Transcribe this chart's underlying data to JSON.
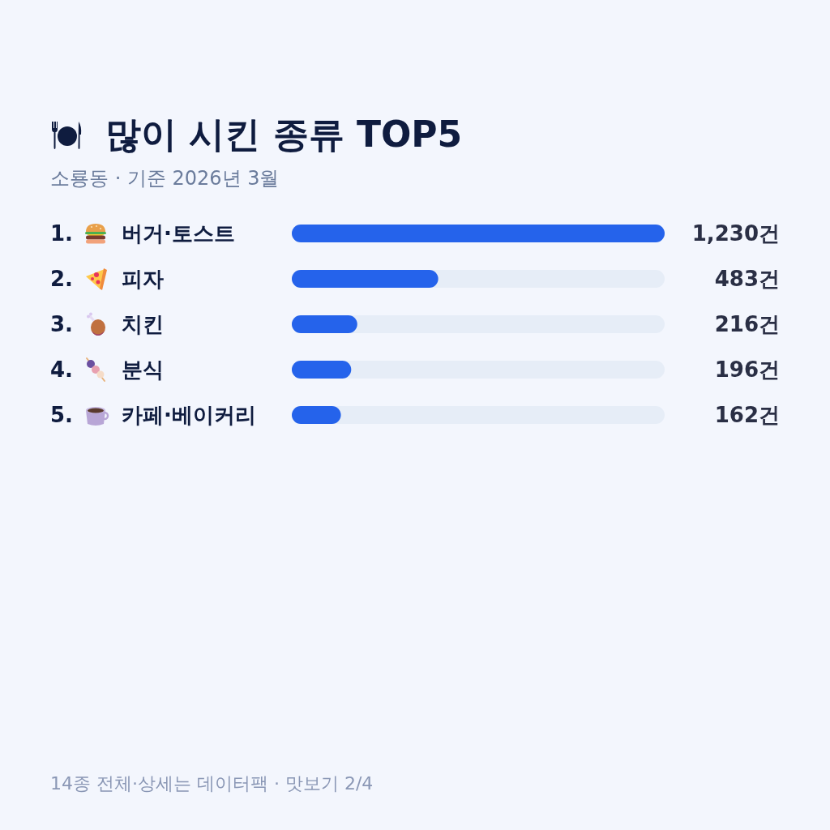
{
  "chart_data": {
    "type": "bar",
    "orientation": "horizontal",
    "title": "많이 시킨 종류 TOP5",
    "subtitle": "소룡동 · 기준 2026년 3월",
    "categories": [
      "1. 버거·토스트",
      "2. 피자",
      "3. 치킨",
      "4. 분식",
      "5. 카페·베이커리"
    ],
    "values": [
      1230,
      483,
      216,
      196,
      162
    ],
    "value_labels": [
      "1,230건",
      "483건",
      "216건",
      "196건",
      "162건"
    ],
    "color": "#2563eb",
    "xlim": [
      0,
      1230
    ],
    "tick_labels": "y",
    "annotations": [
      "14종 전체·상세는 데이터팩 · 맛보기 2/4"
    ]
  }
}
